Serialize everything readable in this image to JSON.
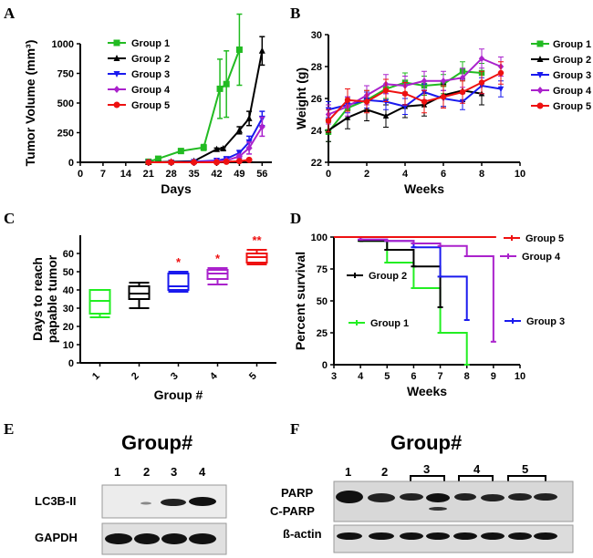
{
  "chart_data": [
    {
      "panel": "A",
      "type": "line",
      "xlabel": "Days",
      "ylabel": "Tumor Volume (mm³)",
      "xlim": [
        0,
        59
      ],
      "ylim": [
        0,
        1000
      ],
      "xticks": [
        0,
        7,
        14,
        21,
        28,
        35,
        42,
        49,
        56
      ],
      "yticks": [
        0,
        250,
        500,
        750,
        1000
      ],
      "legend_position": "top-left",
      "series": [
        {
          "name": "Group 1",
          "color": "#22bb22",
          "marker": "square",
          "x": [
            21,
            24,
            31,
            38,
            43,
            45,
            49
          ],
          "y": [
            5,
            30,
            95,
            125,
            620,
            660,
            950
          ],
          "err": [
            0,
            0,
            20,
            25,
            250,
            280,
            300
          ]
        },
        {
          "name": "Group 2",
          "color": "#000000",
          "marker": "triangle",
          "x": [
            21,
            28,
            35,
            42,
            44,
            49,
            52,
            56
          ],
          "y": [
            0,
            5,
            10,
            110,
            115,
            270,
            370,
            940
          ],
          "err": [
            0,
            0,
            0,
            10,
            10,
            30,
            60,
            120
          ]
        },
        {
          "name": "Group 3",
          "color": "#1a1aee",
          "marker": "triangle-down",
          "x": [
            21,
            28,
            35,
            42,
            45,
            49,
            52,
            56
          ],
          "y": [
            0,
            0,
            5,
            15,
            30,
            80,
            170,
            370
          ],
          "err": [
            0,
            0,
            0,
            5,
            10,
            20,
            50,
            60
          ]
        },
        {
          "name": "Group 4",
          "color": "#aa22cc",
          "marker": "diamond",
          "x": [
            21,
            28,
            35,
            42,
            45,
            49,
            52,
            56
          ],
          "y": [
            0,
            0,
            0,
            10,
            15,
            50,
            120,
            300
          ],
          "err": [
            0,
            0,
            0,
            5,
            5,
            15,
            50,
            80
          ]
        },
        {
          "name": "Group 5",
          "color": "#ee1111",
          "marker": "circle",
          "x": [
            21,
            28,
            35,
            42,
            45,
            49,
            52
          ],
          "y": [
            0,
            0,
            0,
            0,
            5,
            10,
            20
          ],
          "err": [
            0,
            0,
            0,
            0,
            0,
            0,
            0
          ]
        }
      ]
    },
    {
      "panel": "B",
      "type": "line",
      "xlabel": "Weeks",
      "ylabel": "Weight (g)",
      "xlim": [
        0,
        10
      ],
      "ylim": [
        22,
        30
      ],
      "xticks": [
        0,
        2,
        4,
        6,
        8,
        10
      ],
      "yticks": [
        22,
        24,
        26,
        28,
        30
      ],
      "legend_position": "right",
      "series": [
        {
          "name": "Group 1",
          "color": "#22bb22",
          "marker": "square",
          "x": [
            0,
            1,
            2,
            3,
            4,
            5,
            6,
            7,
            8
          ],
          "y": [
            23.9,
            25.4,
            25.9,
            26.6,
            27.0,
            26.8,
            26.9,
            27.7,
            27.6
          ],
          "err": 0.6
        },
        {
          "name": "Group 2",
          "color": "#000000",
          "marker": "triangle",
          "x": [
            0,
            1,
            2,
            3,
            4,
            5,
            6,
            7,
            8
          ],
          "y": [
            24.0,
            24.8,
            25.3,
            24.9,
            25.5,
            25.6,
            26.2,
            26.5,
            26.3
          ],
          "err": 0.7
        },
        {
          "name": "Group 3",
          "color": "#1a1aee",
          "marker": "triangle-down",
          "x": [
            0,
            1,
            2,
            3,
            4,
            5,
            6,
            7,
            8,
            9
          ],
          "y": [
            25.3,
            25.6,
            25.9,
            25.8,
            25.5,
            26.4,
            26.0,
            25.8,
            26.8,
            26.6
          ],
          "err": 0.5
        },
        {
          "name": "Group 4",
          "color": "#aa22cc",
          "marker": "diamond",
          "x": [
            0,
            1,
            2,
            3,
            4,
            5,
            6,
            7,
            8,
            9
          ],
          "y": [
            25.0,
            25.5,
            26.2,
            26.9,
            26.8,
            27.1,
            27.1,
            27.3,
            28.5,
            28.0
          ],
          "err": 0.6
        },
        {
          "name": "Group 5",
          "color": "#ee1111",
          "marker": "circle",
          "x": [
            0,
            1,
            2,
            3,
            4,
            5,
            6,
            7,
            8,
            9
          ],
          "y": [
            24.6,
            25.9,
            25.8,
            26.5,
            26.3,
            25.8,
            26.1,
            26.4,
            27.0,
            27.6
          ],
          "err": 0.7
        }
      ]
    },
    {
      "panel": "C",
      "type": "box",
      "xlabel": "Group #",
      "ylabel": "Days to reach papable tumor",
      "categories": [
        "1",
        "2",
        "3",
        "4",
        "5"
      ],
      "ylim": [
        0,
        70
      ],
      "yticks": [
        0,
        10,
        20,
        30,
        40,
        50,
        60
      ],
      "boxes": [
        {
          "min": 25,
          "q1": 27,
          "median": 34,
          "q3": 40,
          "max": 40,
          "color": "#22ee22",
          "annotation": ""
        },
        {
          "min": 30,
          "q1": 35,
          "median": 38,
          "q3": 42,
          "max": 44,
          "color": "#000000",
          "annotation": ""
        },
        {
          "min": 39,
          "q1": 40,
          "median": 42,
          "q3": 49,
          "max": 50,
          "color": "#1a1aee",
          "annotation": "*"
        },
        {
          "min": 43,
          "q1": 46,
          "median": 49,
          "q3": 51,
          "max": 52,
          "color": "#aa22cc",
          "annotation": "*"
        },
        {
          "min": 54,
          "q1": 55,
          "median": 58,
          "q3": 60,
          "max": 62,
          "color": "#ee1111",
          "annotation": "**"
        }
      ]
    },
    {
      "panel": "D",
      "type": "line",
      "subtype": "survival-step",
      "xlabel": "Weeks",
      "ylabel": "Percent survival",
      "xlim": [
        3,
        10
      ],
      "ylim": [
        0,
        100
      ],
      "xticks": [
        3,
        4,
        5,
        6,
        7,
        8,
        9,
        10
      ],
      "yticks": [
        0,
        25,
        50,
        75,
        100
      ],
      "series": [
        {
          "name": "Group 1",
          "color": "#22ee22",
          "x": [
            3,
            4,
            5,
            6,
            7,
            8
          ],
          "y": [
            100,
            97,
            80,
            60,
            25,
            0
          ]
        },
        {
          "name": "Group 2",
          "color": "#000000",
          "x": [
            3,
            4,
            5,
            6,
            7
          ],
          "y": [
            100,
            97,
            90,
            77,
            45
          ]
        },
        {
          "name": "Group 3",
          "color": "#1a1aee",
          "x": [
            3,
            4,
            5,
            6,
            7,
            8
          ],
          "y": [
            100,
            98,
            97,
            92,
            69,
            35
          ]
        },
        {
          "name": "Group 4",
          "color": "#aa22cc",
          "x": [
            3,
            4,
            5,
            6,
            7,
            8,
            9
          ],
          "y": [
            100,
            98,
            97,
            95,
            93,
            85,
            18
          ]
        },
        {
          "name": "Group 5",
          "color": "#ee1111",
          "x": [
            3,
            9
          ],
          "y": [
            100,
            100
          ]
        }
      ]
    }
  ],
  "panels": {
    "a": {
      "letter": "A"
    },
    "b": {
      "letter": "B"
    },
    "c": {
      "letter": "C"
    },
    "d": {
      "letter": "D"
    },
    "e": {
      "letter": "E"
    },
    "f": {
      "letter": "F"
    }
  },
  "blot_e": {
    "title": "Group#",
    "lanes": [
      "1",
      "2",
      "3",
      "4"
    ],
    "rows": [
      "LC3B-II",
      "GAPDH"
    ]
  },
  "blot_f": {
    "title": "Group#",
    "lanes": [
      "1",
      "2",
      "3",
      "4",
      "5"
    ],
    "rows": [
      "PARP",
      "C-PARP",
      "ß-actin"
    ]
  }
}
